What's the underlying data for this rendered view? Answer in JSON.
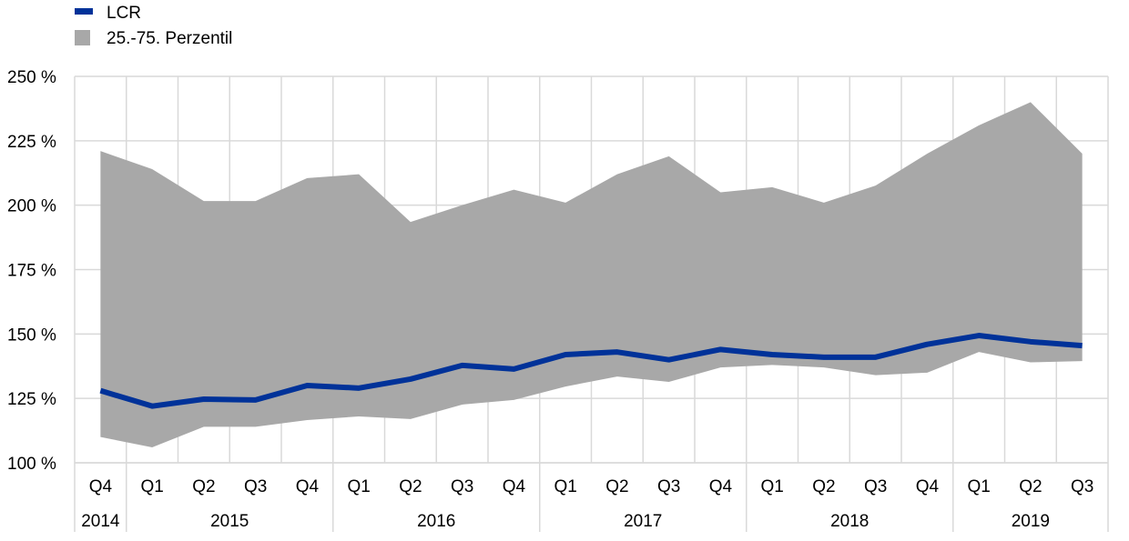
{
  "chart_data": {
    "type": "area",
    "categories": [
      "Q4",
      "Q1",
      "Q2",
      "Q3",
      "Q4",
      "Q1",
      "Q2",
      "Q3",
      "Q4",
      "Q1",
      "Q2",
      "Q3",
      "Q4",
      "Q1",
      "Q2",
      "Q3",
      "Q4",
      "Q1",
      "Q2",
      "Q3"
    ],
    "years": [
      {
        "label": "2014",
        "span": 1
      },
      {
        "label": "2015",
        "span": 4
      },
      {
        "label": "2016",
        "span": 4
      },
      {
        "label": "2017",
        "span": 4
      },
      {
        "label": "2018",
        "span": 4
      },
      {
        "label": "2019",
        "span": 3
      }
    ],
    "ylim": [
      100,
      250
    ],
    "yticks": [
      100,
      125,
      150,
      175,
      200,
      225,
      250
    ],
    "ytick_suffix": " %",
    "grid": true,
    "legend_position": "top-left",
    "series": [
      {
        "name": "LCR",
        "type": "line",
        "color": "#003299",
        "values": [
          128,
          122,
          124.7,
          124.4,
          130,
          129,
          132.5,
          137.8,
          136.4,
          142,
          143,
          140,
          144,
          142,
          141,
          141,
          146,
          149.4,
          147,
          145.5
        ]
      },
      {
        "name": "25.-75. Perzentil",
        "type": "band",
        "color": "#a8a8a8",
        "lower": [
          110,
          106,
          114,
          114,
          116.6,
          118,
          117,
          122.6,
          124.4,
          129.6,
          133.5,
          131.4,
          137,
          138,
          137,
          134,
          135,
          143,
          139,
          139.5
        ],
        "upper": [
          221,
          214,
          201.6,
          201.6,
          210.5,
          212,
          193.5,
          200,
          206,
          201,
          212,
          219,
          205,
          207,
          201,
          207.6,
          220,
          231,
          240,
          220
        ]
      }
    ]
  }
}
